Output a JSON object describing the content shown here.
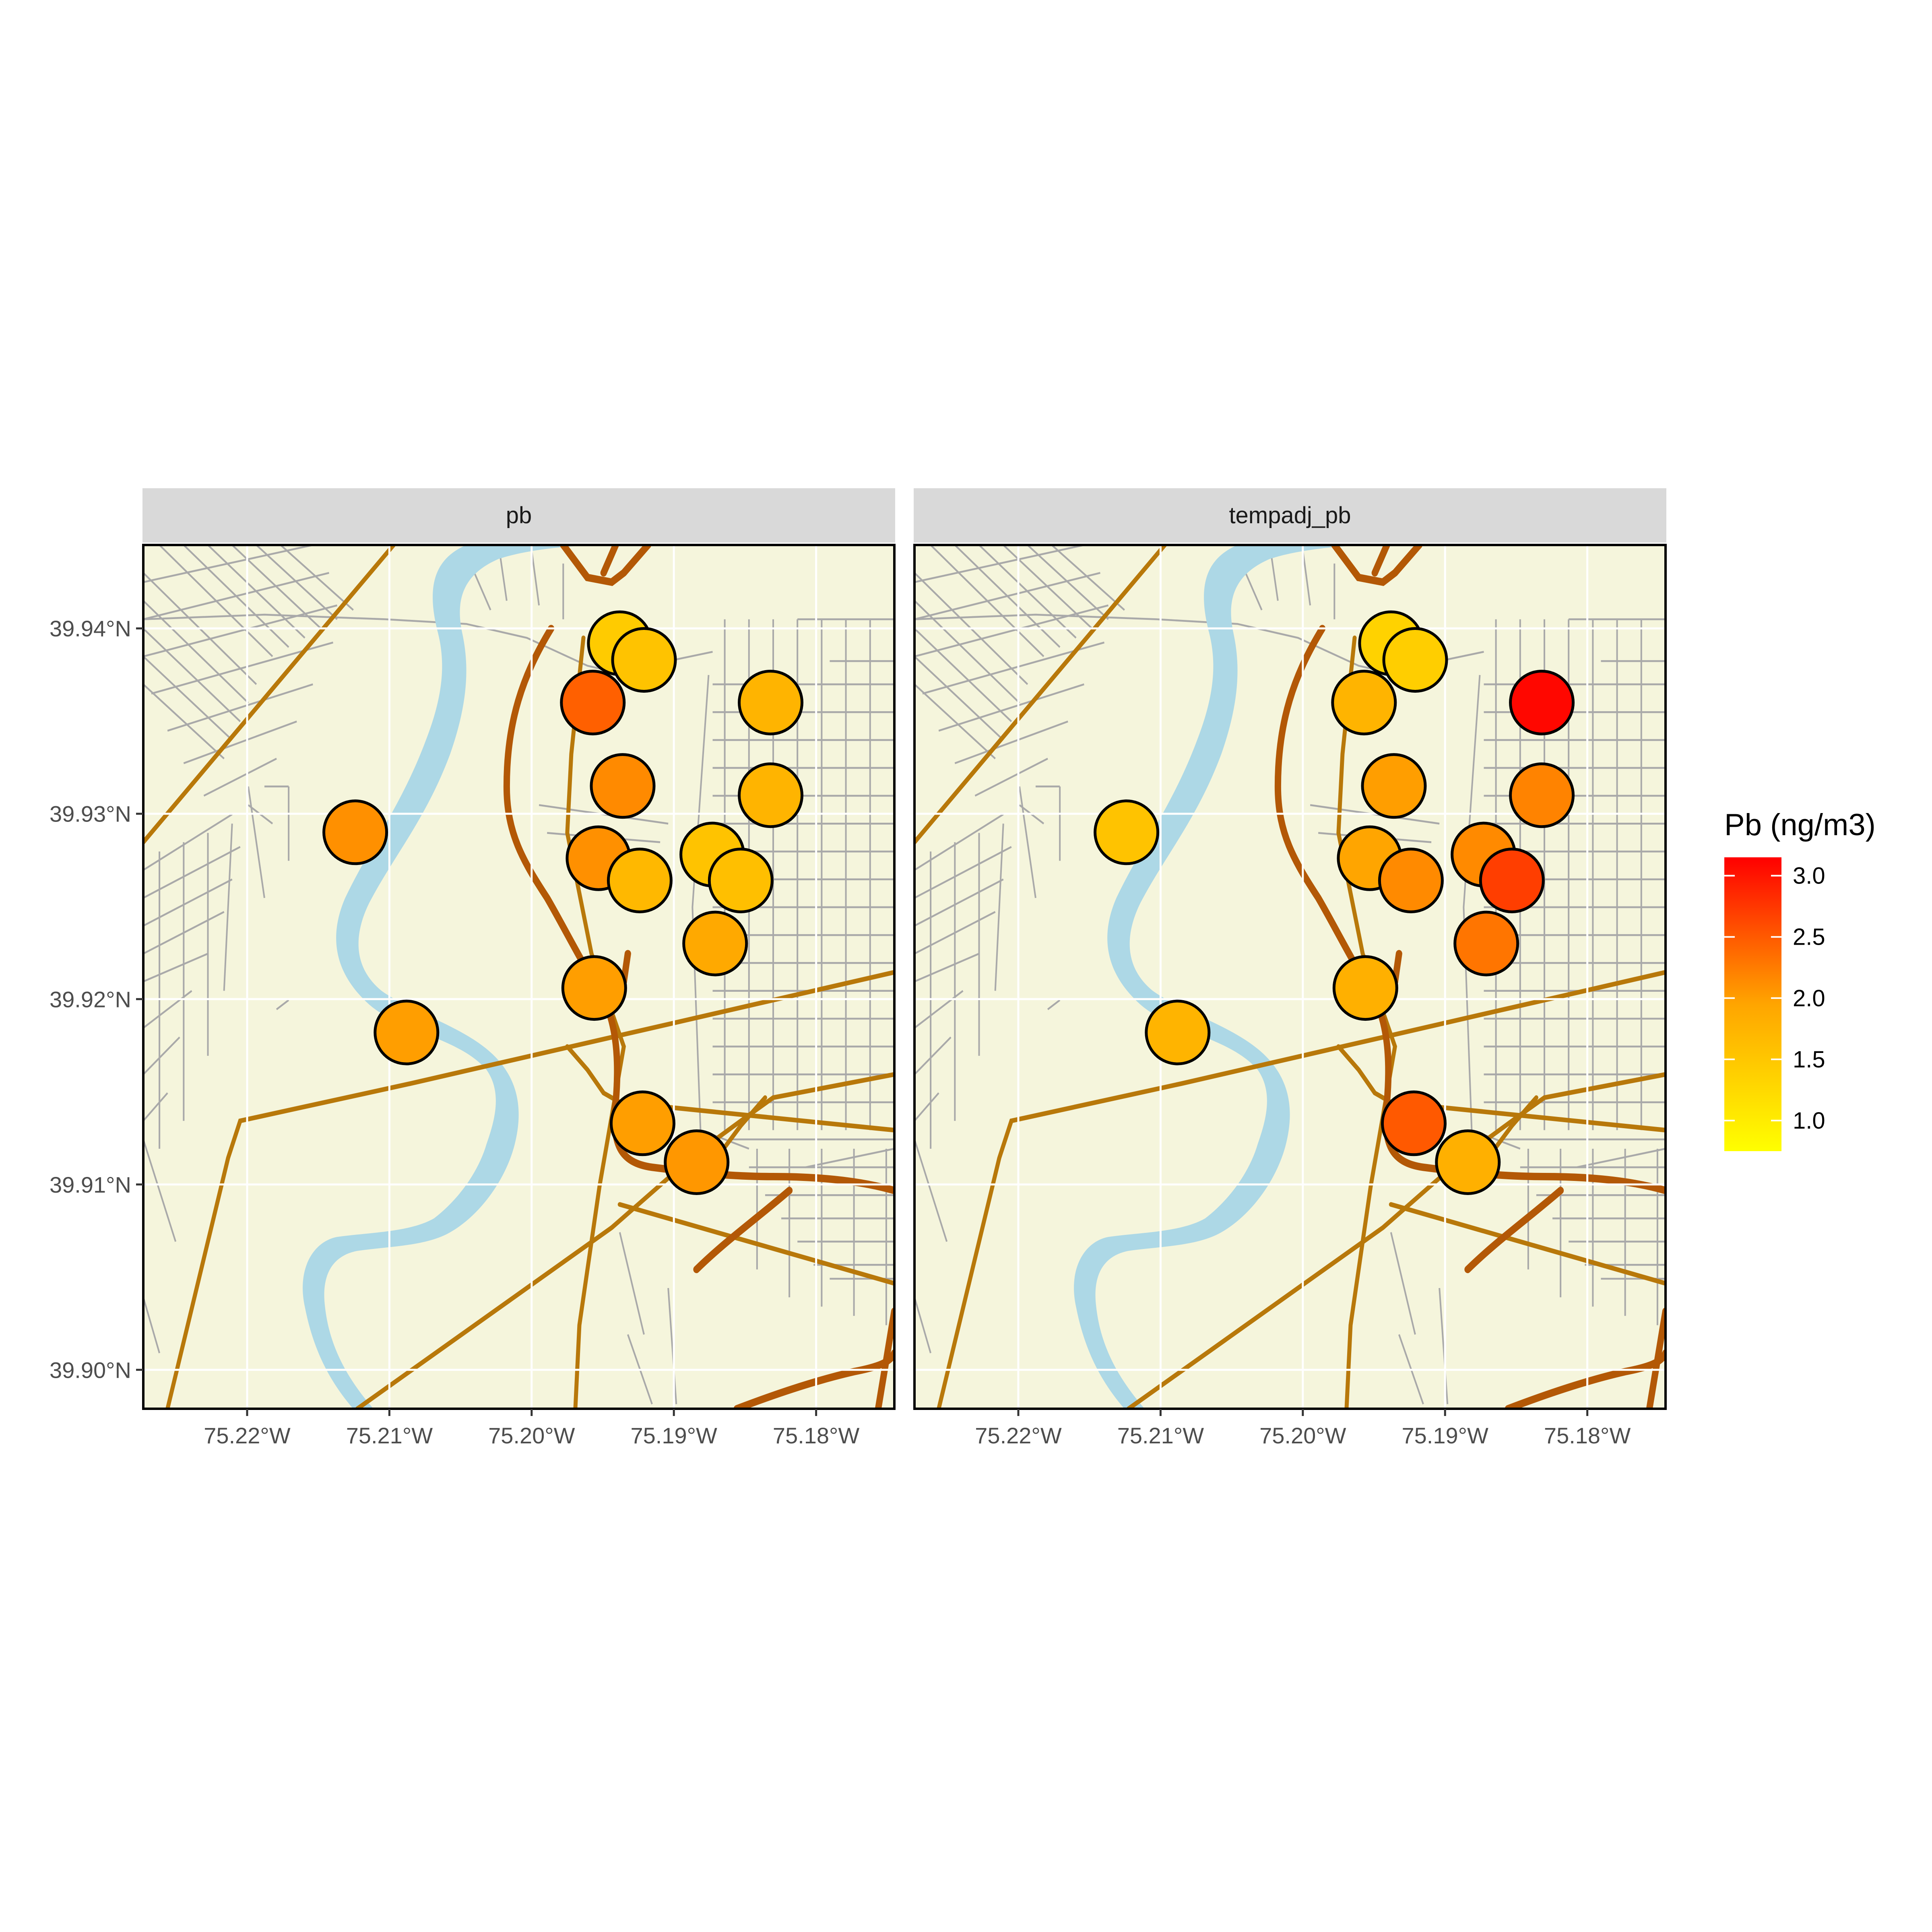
{
  "chart_data": {
    "type": "scatter",
    "title": "",
    "xlabel": "",
    "ylabel": "",
    "xlim": [
      -75.2273,
      -75.1745
    ],
    "ylim": [
      39.8979,
      39.9445
    ],
    "x_ticks": [
      {
        "value": -75.22,
        "label": "75.22°W"
      },
      {
        "value": -75.21,
        "label": "75.21°W"
      },
      {
        "value": -75.2,
        "label": "75.20°W"
      },
      {
        "value": -75.19,
        "label": "75.19°W"
      },
      {
        "value": -75.18,
        "label": "75.18°W"
      }
    ],
    "y_ticks": [
      {
        "value": 39.9,
        "label": "39.90°N"
      },
      {
        "value": 39.91,
        "label": "39.91°N"
      },
      {
        "value": 39.92,
        "label": "39.92°N"
      },
      {
        "value": 39.93,
        "label": "39.93°N"
      },
      {
        "value": 39.94,
        "label": "39.94°N"
      }
    ],
    "grid": true,
    "basemap": "street map",
    "colors": {
      "land": "#f5f5dc",
      "water": "#add8e6",
      "minor_road": "#a9a9a9",
      "arterial": "#b8780a",
      "highway": "#b35806",
      "grid": "#ffffff",
      "strip_bg": "#d9d9d9",
      "point_outline": "#000000"
    },
    "legend": {
      "title": "Pb (ng/m3)",
      "position": "right",
      "range": [
        0.75,
        3.15
      ],
      "low_color": "#ffff00",
      "mid_color": "#ffa500",
      "high_color": "#ff0000",
      "ticks": [
        {
          "value": 1.0,
          "label": "1.0"
        },
        {
          "value": 1.5,
          "label": "1.5"
        },
        {
          "value": 2.0,
          "label": "2.0"
        },
        {
          "value": 2.5,
          "label": "2.5"
        },
        {
          "value": 3.0,
          "label": "3.0"
        }
      ]
    },
    "panels": [
      {
        "name": "pb",
        "points": [
          {
            "lon": -75.1938,
            "lat": 39.9392,
            "value": 1.45
          },
          {
            "lon": -75.1921,
            "lat": 39.9383,
            "value": 1.55
          },
          {
            "lon": -75.1957,
            "lat": 39.936,
            "value": 2.45
          },
          {
            "lon": -75.1832,
            "lat": 39.936,
            "value": 1.75
          },
          {
            "lon": -75.1936,
            "lat": 39.9315,
            "value": 2.15
          },
          {
            "lon": -75.1832,
            "lat": 39.931,
            "value": 1.75
          },
          {
            "lon": -75.2124,
            "lat": 39.929,
            "value": 2.1
          },
          {
            "lon": -75.1953,
            "lat": 39.9276,
            "value": 2.1
          },
          {
            "lon": -75.1873,
            "lat": 39.9278,
            "value": 1.55
          },
          {
            "lon": -75.1924,
            "lat": 39.9264,
            "value": 1.7
          },
          {
            "lon": -75.1853,
            "lat": 39.9264,
            "value": 1.6
          },
          {
            "lon": -75.1871,
            "lat": 39.923,
            "value": 1.9
          },
          {
            "lon": -75.1956,
            "lat": 39.9206,
            "value": 2.0
          },
          {
            "lon": -75.2088,
            "lat": 39.9182,
            "value": 2.0
          },
          {
            "lon": -75.1922,
            "lat": 39.9133,
            "value": 2.0
          },
          {
            "lon": -75.1884,
            "lat": 39.9112,
            "value": 2.05
          }
        ]
      },
      {
        "name": "tempadj_pb",
        "points": [
          {
            "lon": -75.1938,
            "lat": 39.9392,
            "value": 1.35
          },
          {
            "lon": -75.1921,
            "lat": 39.9383,
            "value": 1.4
          },
          {
            "lon": -75.1957,
            "lat": 39.936,
            "value": 1.75
          },
          {
            "lon": -75.1832,
            "lat": 39.936,
            "value": 3.1
          },
          {
            "lon": -75.1936,
            "lat": 39.9315,
            "value": 2.0
          },
          {
            "lon": -75.1832,
            "lat": 39.931,
            "value": 2.2
          },
          {
            "lon": -75.2124,
            "lat": 39.929,
            "value": 1.55
          },
          {
            "lon": -75.1953,
            "lat": 39.9276,
            "value": 1.95
          },
          {
            "lon": -75.1873,
            "lat": 39.9278,
            "value": 2.15
          },
          {
            "lon": -75.1924,
            "lat": 39.9264,
            "value": 2.15
          },
          {
            "lon": -75.1853,
            "lat": 39.9264,
            "value": 2.7
          },
          {
            "lon": -75.1871,
            "lat": 39.923,
            "value": 2.3
          },
          {
            "lon": -75.1956,
            "lat": 39.9206,
            "value": 1.8
          },
          {
            "lon": -75.2088,
            "lat": 39.9182,
            "value": 1.75
          },
          {
            "lon": -75.1922,
            "lat": 39.9133,
            "value": 2.5
          },
          {
            "lon": -75.1884,
            "lat": 39.9112,
            "value": 1.8
          }
        ]
      }
    ]
  }
}
